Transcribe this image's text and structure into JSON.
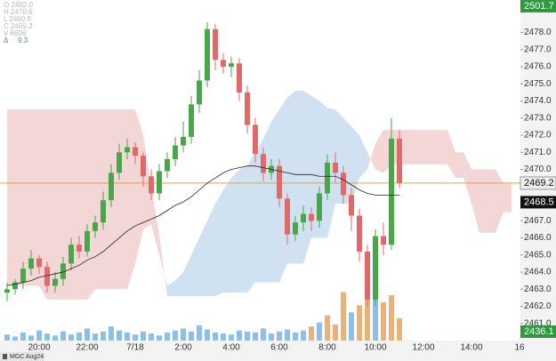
{
  "chart_data": {
    "type": "candlestick",
    "symbol": "MGC Aug24",
    "info": [
      "O 2462.0",
      "H 2470.6",
      "L 2460.6",
      "C 2469.2",
      "V 6606"
    ],
    "delta_label": "Δ",
    "delta": "9.3",
    "top_badge": "2501.7",
    "bottom_badge": "2436.1",
    "categories": [
      null,
      null,
      null,
      null,
      "20:00",
      null,
      null,
      null,
      null,
      null,
      "22:00",
      null,
      null,
      null,
      null,
      null,
      "7/18",
      null,
      null,
      null,
      null,
      null,
      "2:00",
      null,
      null,
      null,
      null,
      null,
      "4:00",
      null,
      null,
      null,
      null,
      null,
      "6:00",
      null,
      null,
      null,
      null,
      null,
      "8:00",
      null,
      null,
      null,
      null,
      null,
      "10:00",
      null,
      null,
      null,
      null,
      null,
      "12:00",
      null,
      null,
      null,
      null,
      null,
      "14:00",
      null,
      null,
      null,
      null,
      null,
      "16"
    ],
    "open": [
      2462.8,
      2463.0,
      2463.4,
      2464.2,
      2464.8,
      2464.3,
      2463.2,
      2463.6,
      2464.5,
      2465.6,
      2465.2,
      2466.4,
      2466.9,
      2468.2,
      2469.8,
      2471.0,
      2471.3,
      2470.8,
      2469.6,
      2468.6,
      2469.9,
      2470.6,
      2471.4,
      2471.9,
      2473.8,
      2475.2,
      2478.2,
      2476.4,
      2476.0,
      2476.2,
      2474.5,
      2472.6,
      2470.9,
      2469.8,
      2470.2,
      2468.3,
      2466.2,
      2466.9,
      2467.4,
      2467.0,
      2468.6,
      2470.4,
      2469.8,
      2468.5,
      2467.3,
      2465.2,
      2462.4,
      2466.1,
      2465.6,
      2471.8,
      null,
      null,
      null,
      null,
      null,
      null,
      null,
      null,
      null,
      null,
      null,
      null,
      null,
      null,
      null
    ],
    "high": [
      2463.4,
      2463.6,
      2464.6,
      2465.3,
      2465.0,
      2464.6,
      2464.0,
      2464.9,
      2466.0,
      2466.1,
      2466.8,
      2467.3,
      2468.7,
      2470.3,
      2471.5,
      2471.8,
      2471.6,
      2471.0,
      2470.0,
      2470.3,
      2471.0,
      2471.9,
      2472.8,
      2474.3,
      2475.8,
      2478.6,
      2478.5,
      2476.8,
      2476.6,
      2476.5,
      2474.9,
      2473.0,
      2471.3,
      2470.6,
      2470.6,
      2468.6,
      2467.3,
      2467.9,
      2467.8,
      2469.0,
      2470.9,
      2471.0,
      2470.2,
      2468.9,
      2467.7,
      2465.6,
      2466.5,
      2466.9,
      2473.0,
      2472.3,
      null,
      null,
      null,
      null,
      null,
      null,
      null,
      null,
      null,
      null,
      null,
      null,
      null,
      null,
      null
    ],
    "low": [
      2462.3,
      2462.7,
      2463.0,
      2463.8,
      2463.9,
      2462.8,
      2462.8,
      2463.2,
      2464.1,
      2464.8,
      2464.9,
      2466.0,
      2466.5,
      2467.8,
      2469.4,
      2470.6,
      2470.3,
      2469.0,
      2468.2,
      2468.2,
      2469.5,
      2470.2,
      2471.0,
      2471.5,
      2473.3,
      2474.8,
      2475.8,
      2475.6,
      2475.4,
      2474.0,
      2472.1,
      2470.4,
      2469.3,
      2469.4,
      2467.8,
      2465.6,
      2465.8,
      2466.4,
      2466.4,
      2466.6,
      2468.2,
      2469.2,
      2468.0,
      2466.4,
      2464.6,
      2462.0,
      2462.0,
      2465.0,
      2465.3,
      2468.9,
      null,
      null,
      null,
      null,
      null,
      null,
      null,
      null,
      null,
      null,
      null,
      null,
      null,
      null,
      null
    ],
    "close": [
      2463.0,
      2463.4,
      2464.2,
      2464.8,
      2464.3,
      2463.2,
      2463.6,
      2464.5,
      2465.6,
      2465.2,
      2466.4,
      2466.9,
      2468.2,
      2469.8,
      2471.0,
      2471.3,
      2470.8,
      2469.6,
      2468.6,
      2469.9,
      2470.6,
      2471.4,
      2471.9,
      2473.8,
      2475.2,
      2478.2,
      2476.4,
      2476.0,
      2476.2,
      2474.5,
      2472.6,
      2470.9,
      2469.8,
      2470.2,
      2468.3,
      2466.2,
      2466.9,
      2467.4,
      2467.0,
      2468.6,
      2470.4,
      2469.8,
      2468.5,
      2467.3,
      2465.2,
      2462.4,
      2466.1,
      2465.6,
      2471.8,
      2469.2,
      null,
      null,
      null,
      null,
      null,
      null,
      null,
      null,
      null,
      null,
      null,
      null,
      null,
      null,
      null
    ],
    "ma": [
      2463.2,
      2463.3,
      2463.4,
      2463.5,
      2463.7,
      2463.8,
      2463.9,
      2464.0,
      2464.2,
      2464.4,
      2464.7,
      2464.9,
      2465.2,
      2465.6,
      2466.0,
      2466.4,
      2466.7,
      2466.9,
      2467.1,
      2467.3,
      2467.6,
      2467.9,
      2468.1,
      2468.4,
      2468.8,
      2469.2,
      2469.5,
      2469.8,
      2470.0,
      2470.1,
      2470.2,
      2470.2,
      2470.1,
      2470.0,
      2469.9,
      2469.8,
      2469.7,
      2469.7,
      2469.7,
      2469.6,
      2469.6,
      2469.6,
      2469.4,
      2469.1,
      2468.8,
      2468.6,
      2468.5,
      2468.5,
      2468.5,
      2468.5,
      null,
      null,
      null,
      null,
      null,
      null,
      null,
      null,
      null,
      null,
      null,
      null,
      null,
      null,
      null
    ],
    "span_a": [
      2463.2,
      2463.2,
      2463.2,
      2463.2,
      2463.2,
      2462.4,
      2462.4,
      2462.4,
      2462.4,
      2462.4,
      2462.4,
      2463.0,
      2463.0,
      2463.0,
      2463.0,
      2463.0,
      2464.5,
      2466.5,
      2466.8,
      2465.0,
      2463.2,
      2463.5,
      2464.0,
      2465.0,
      2466.0,
      2467.0,
      2468.0,
      2468.8,
      2469.5,
      2470.0,
      2470.2,
      2471.0,
      2471.8,
      2472.8,
      2473.5,
      2474.2,
      2474.6,
      2474.6,
      2474.3,
      2474.0,
      2473.6,
      2473.5,
      2473.0,
      2472.5,
      2472.0,
      2471.0,
      2470.0,
      2469.8,
      2470.3,
      2470.3,
      2470.3,
      2470.3,
      2470.3,
      2470.3,
      2470.3,
      2470.3,
      2469.5,
      2469.5,
      2468.0,
      2466.3,
      2466.3,
      2466.3,
      2467.5,
      2467.5,
      null
    ],
    "span_b": [
      2473.5,
      2473.5,
      2473.5,
      2473.5,
      2473.5,
      2473.5,
      2473.5,
      2473.5,
      2473.5,
      2473.5,
      2473.5,
      2473.5,
      2473.5,
      2473.5,
      2473.5,
      2473.5,
      2473.5,
      2472.0,
      2469.0,
      2466.2,
      2462.6,
      2462.6,
      2462.6,
      2462.6,
      2462.6,
      2462.6,
      2462.6,
      2462.8,
      2462.8,
      2462.8,
      2462.8,
      2463.4,
      2463.4,
      2463.4,
      2463.4,
      2464.5,
      2464.5,
      2464.5,
      2466.0,
      2466.0,
      2466.0,
      2468.0,
      2468.0,
      2468.0,
      2469.5,
      2470.0,
      2471.5,
      2472.3,
      2472.3,
      2472.3,
      2472.3,
      2472.3,
      2472.3,
      2472.3,
      2472.3,
      2472.3,
      2471.0,
      2471.0,
      2470.0,
      2470.0,
      2470.0,
      2470.0,
      2469.2,
      2469.2,
      null
    ],
    "volume": [
      6,
      4,
      8,
      5,
      10,
      7,
      5,
      9,
      6,
      8,
      12,
      7,
      9,
      14,
      10,
      8,
      6,
      9,
      7,
      5,
      8,
      10,
      12,
      9,
      15,
      11,
      8,
      7,
      6,
      10,
      9,
      8,
      12,
      7,
      9,
      11,
      8,
      10,
      14,
      18,
      25,
      16,
      48,
      28,
      35,
      52,
      75,
      38,
      45,
      22,
      null,
      null,
      null,
      null,
      null,
      null,
      null,
      null,
      null,
      null,
      null,
      null,
      null,
      null,
      null
    ],
    "volume_colors": [
      "#8dbfe8",
      "#8dbfe8",
      "#8dbfe8",
      "#8dbfe8",
      "#8dbfe8",
      "#8dbfe8",
      "#8dbfe8",
      "#8dbfe8",
      "#8dbfe8",
      "#8dbfe8",
      "#8dbfe8",
      "#8dbfe8",
      "#8dbfe8",
      "#8dbfe8",
      "#8dbfe8",
      "#8dbfe8",
      "#8dbfe8",
      "#8dbfe8",
      "#8dbfe8",
      "#8dbfe8",
      "#8dbfe8",
      "#8dbfe8",
      "#8dbfe8",
      "#8dbfe8",
      "#8dbfe8",
      "#8dbfe8",
      "#8dbfe8",
      "#8dbfe8",
      "#8dbfe8",
      "#8dbfe8",
      "#8dbfe8",
      "#8dbfe8",
      "#8dbfe8",
      "#8dbfe8",
      "#8dbfe8",
      "#8dbfe8",
      "#8dbfe8",
      "#8dbfe8",
      "#e8b27a",
      "#8dbfe8",
      "#e8b27a",
      "#e8b27a",
      "#e8b27a",
      "#8dbfe8",
      "#e8b27a",
      "#e8b27a",
      "#8dbfe8",
      "#e8b27a",
      "#e8b27a",
      "#e8b27a",
      null,
      null,
      null,
      null,
      null,
      null,
      null,
      null,
      null,
      null,
      null,
      null,
      null,
      null,
      null
    ],
    "up_color": "#4aa64a",
    "down_color": "#e06a6a",
    "ma_color": "#222222",
    "price_line_color": "#f0a030",
    "cloud_up_color": "#a9cbe8",
    "cloud_down_color": "#eab4b4",
    "ylim": [
      2460.0,
      2479.9
    ],
    "yticks": [
      {
        "value": 2461,
        "label": "2461.0"
      },
      {
        "value": 2462,
        "label": "2462.0"
      },
      {
        "value": 2463,
        "label": "2463.0"
      },
      {
        "value": 2464,
        "label": "2464.0"
      },
      {
        "value": 2465,
        "label": "2465.0"
      },
      {
        "value": 2466,
        "label": "2466.0"
      },
      {
        "value": 2467,
        "label": "2467.0"
      },
      {
        "value": 2468,
        "label": "2468.0"
      },
      {
        "value": 2469,
        "label": "2469.0"
      },
      {
        "value": 2470,
        "label": "2470.0"
      },
      {
        "value": 2471,
        "label": "2471.0"
      },
      {
        "value": 2472,
        "label": "2472.0"
      },
      {
        "value": 2473,
        "label": "2473.0"
      },
      {
        "value": 2474,
        "label": "2474.0"
      },
      {
        "value": 2475,
        "label": "2475.0"
      },
      {
        "value": 2476,
        "label": "2476.0"
      },
      {
        "value": 2477,
        "label": "2477.0"
      },
      {
        "value": 2478,
        "label": "2478.0"
      }
    ]
  }
}
